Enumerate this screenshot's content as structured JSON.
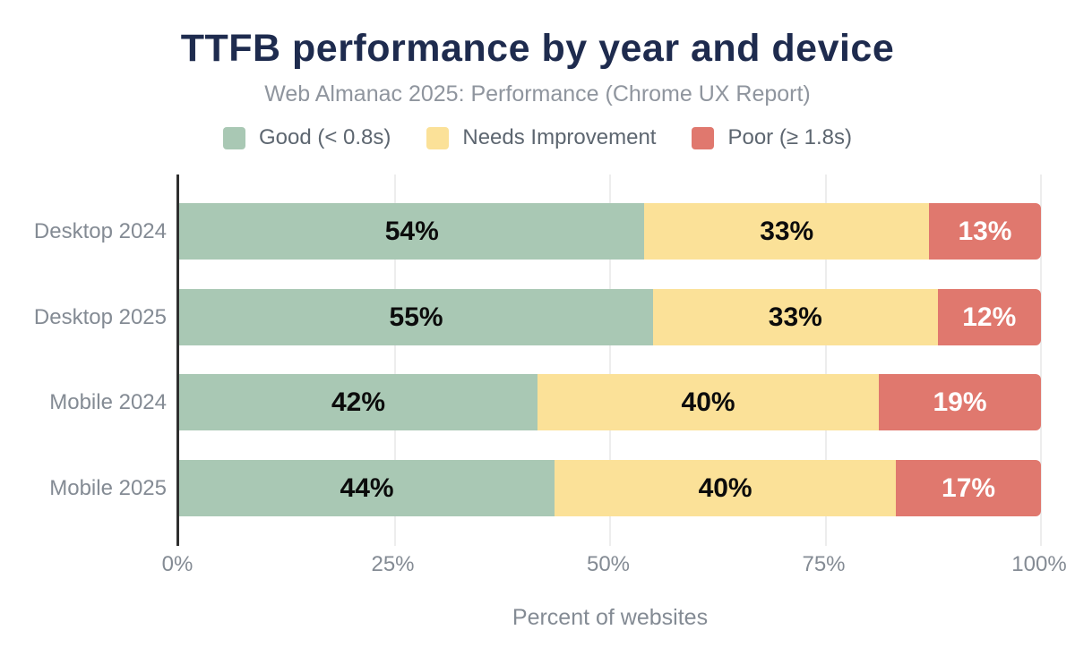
{
  "title": "TTFB performance by year and device",
  "subtitle": "Web Almanac 2025: Performance (Chrome UX Report)",
  "legend": {
    "items": [
      {
        "label": "Good (< 0.8s)",
        "color": "#a9c8b4"
      },
      {
        "label": "Needs Improvement",
        "color": "#fbe198"
      },
      {
        "label": "Poor (≥ 1.8s)",
        "color": "#e0786e"
      }
    ]
  },
  "colors": {
    "title_navy": "#1e2b4e",
    "muted_text": "#848b94",
    "gridline": "#ededed",
    "axis_line": "#2f2f2f",
    "label_on_dark": "#ffffff",
    "label_on_light": "#0c0c0c"
  },
  "chart_data": {
    "type": "bar",
    "orientation": "horizontal",
    "stacked": true,
    "title": "TTFB performance by year and device",
    "subtitle": "Web Almanac 2025: Performance (Chrome UX Report)",
    "xlabel": "Percent of websites",
    "ylabel": "",
    "xlim": [
      0,
      100
    ],
    "grid": true,
    "legend_position": "top",
    "categories": [
      "Desktop 2024",
      "Desktop 2025",
      "Mobile 2024",
      "Mobile 2025"
    ],
    "x_tick_labels": [
      "0%",
      "25%",
      "50%",
      "75%",
      "100%"
    ],
    "series": [
      {
        "name": "Good (< 0.8s)",
        "color": "#a9c8b4",
        "label_color": "#0c0c0c",
        "values": [
          54,
          55,
          42,
          44
        ]
      },
      {
        "name": "Needs Improvement",
        "color": "#fbe198",
        "label_color": "#0c0c0c",
        "values": [
          33,
          33,
          40,
          40
        ]
      },
      {
        "name": "Poor (≥ 1.8s)",
        "color": "#e0786e",
        "label_color": "#ffffff",
        "values": [
          13,
          12,
          19,
          17
        ]
      }
    ]
  }
}
